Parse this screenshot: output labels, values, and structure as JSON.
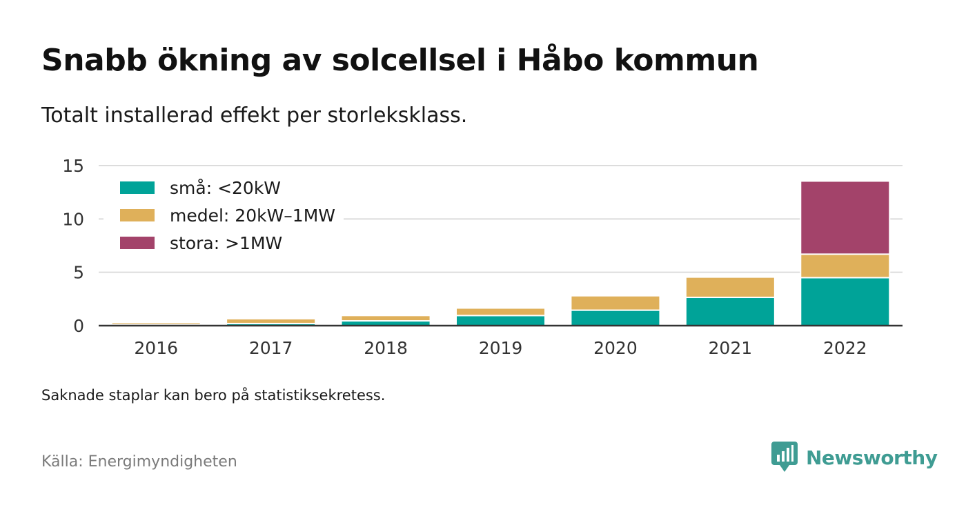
{
  "title": "Snabb ökning av solcellsel i Håbo kommun",
  "subtitle": "Totalt installerad effekt per storleksklass.",
  "note": "Saknade staplar kan bero på statistiksekretess.",
  "source": "Källa: Energimyndigheten",
  "brand": {
    "name": "Newsworthy",
    "icon": "newsworthy-logo-icon",
    "color": "#3f9c93"
  },
  "chart_data": {
    "type": "bar",
    "stacked": true,
    "categories": [
      "2016",
      "2017",
      "2018",
      "2019",
      "2020",
      "2021",
      "2022"
    ],
    "series": [
      {
        "name": "små: <20kW",
        "color": "#00a398",
        "values": [
          0.1,
          0.2,
          0.45,
          0.95,
          1.45,
          2.65,
          4.5
        ]
      },
      {
        "name": "medel: 20kW–1MW",
        "color": "#dfb05a",
        "values": [
          0.2,
          0.45,
          0.5,
          0.7,
          1.35,
          1.9,
          2.2
        ]
      },
      {
        "name": "stora: >1MW",
        "color": "#a3436a",
        "values": [
          0,
          0,
          0,
          0,
          0,
          0,
          6.85
        ]
      }
    ],
    "ylim": [
      0,
      15
    ],
    "yticks": [
      0,
      5,
      10,
      15
    ],
    "grid": true,
    "legend_position": "top-left",
    "xlabel": "",
    "ylabel": ""
  }
}
